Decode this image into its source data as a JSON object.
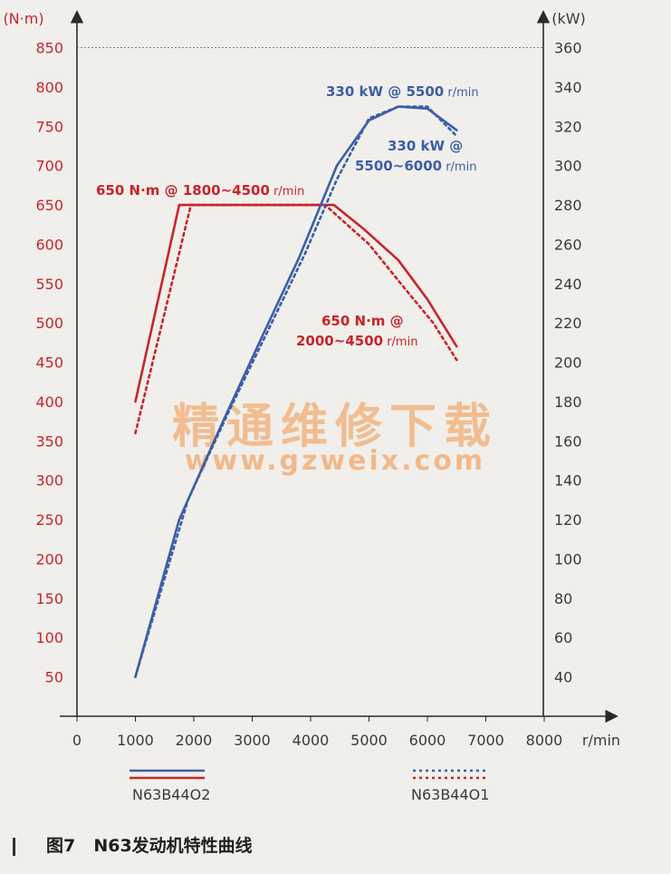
{
  "chart_data": {
    "type": "line",
    "x": {
      "unit": "r/min",
      "ticks": [
        0,
        1000,
        2000,
        3000,
        4000,
        5000,
        6000,
        7000,
        8000
      ],
      "range": [
        0,
        8000
      ]
    },
    "y_left": {
      "unit": "(N·m)",
      "ticks": [
        50,
        100,
        150,
        200,
        250,
        300,
        350,
        400,
        450,
        500,
        550,
        600,
        650,
        700,
        750,
        800,
        850
      ],
      "range": [
        0,
        850
      ]
    },
    "y_right": {
      "unit": "(kW)",
      "ticks": [
        40,
        60,
        80,
        100,
        120,
        140,
        160,
        180,
        200,
        220,
        240,
        260,
        280,
        300,
        320,
        340,
        360
      ],
      "range": [
        20,
        360
      ]
    },
    "series": [
      {
        "name": "N63B44O2",
        "quantity": "torque",
        "axis": "left",
        "color": "#c8242a",
        "style": "solid",
        "points": [
          [
            1000,
            400
          ],
          [
            1750,
            650
          ],
          [
            4400,
            650
          ],
          [
            4900,
            620
          ],
          [
            5500,
            580
          ],
          [
            6000,
            530
          ],
          [
            6500,
            470
          ]
        ]
      },
      {
        "name": "N63B44O1",
        "quantity": "torque",
        "axis": "left",
        "color": "#c8242a",
        "style": "dotted",
        "points": [
          [
            1000,
            360
          ],
          [
            1950,
            650
          ],
          [
            4250,
            650
          ],
          [
            5000,
            600
          ],
          [
            5600,
            545
          ],
          [
            6100,
            500
          ],
          [
            6500,
            453
          ]
        ]
      },
      {
        "name": "N63B44O2",
        "quantity": "power",
        "axis": "right",
        "color": "#3b5ea8",
        "style": "solid",
        "points": [
          [
            1000,
            40
          ],
          [
            1750,
            120
          ],
          [
            2500,
            170
          ],
          [
            3200,
            215
          ],
          [
            3800,
            253
          ],
          [
            4450,
            300
          ],
          [
            5000,
            323
          ],
          [
            5500,
            330
          ],
          [
            6000,
            329
          ],
          [
            6500,
            318
          ]
        ]
      },
      {
        "name": "N63B44O1",
        "quantity": "power",
        "axis": "right",
        "color": "#3b5ea8",
        "style": "dotted",
        "points": [
          [
            1000,
            40
          ],
          [
            1900,
            130
          ],
          [
            2600,
            175
          ],
          [
            3300,
            218
          ],
          [
            3900,
            255
          ],
          [
            4450,
            293
          ],
          [
            5000,
            324
          ],
          [
            5500,
            330
          ],
          [
            6000,
            330
          ],
          [
            6500,
            315
          ]
        ]
      }
    ],
    "annotations": [
      {
        "id": "torque-o2",
        "value": "650 N·m @ 1800~4500",
        "unit": "r/min",
        "color": "red"
      },
      {
        "id": "torque-o1-line1",
        "value": "650 N·m @",
        "color": "red"
      },
      {
        "id": "torque-o1-line2",
        "value": "2000~4500",
        "unit": "r/min",
        "color": "red"
      },
      {
        "id": "power-o2",
        "value": "330 kW @ 5500",
        "unit": "r/min",
        "color": "blue"
      },
      {
        "id": "power-o1-line1",
        "value": "330 kW @",
        "color": "blue"
      },
      {
        "id": "power-o1-line2",
        "value": "5500~6000",
        "unit": "r/min",
        "color": "blue"
      }
    ],
    "grid": false,
    "legend_position": "bottom",
    "legend": [
      {
        "label": "N63B44O2",
        "style": "solid"
      },
      {
        "label": "N63B44O1",
        "style": "dotted"
      }
    ]
  },
  "watermark": {
    "text_cn": "精通维修下载",
    "url": "www.gzweix.com"
  },
  "caption": {
    "figure": "图7",
    "title": "N63发动机特性曲线"
  }
}
